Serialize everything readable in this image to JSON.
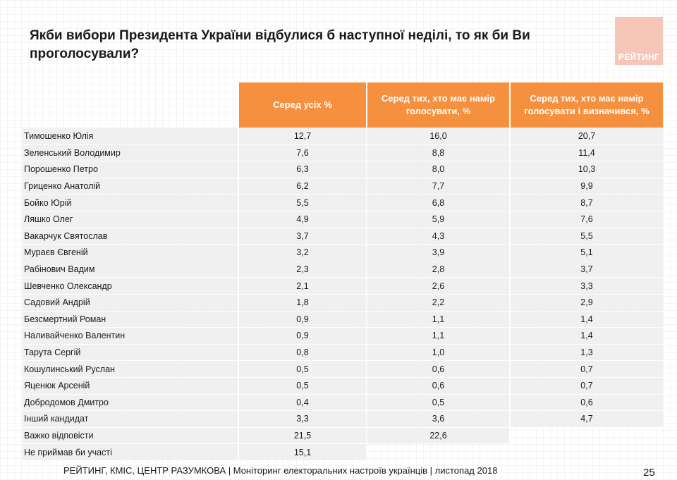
{
  "title": "Якби вибори Президента України відбулися б наступної неділі, то як би Ви проголосували?",
  "logo_text": "РЕЙТИНГ",
  "table": {
    "headers": [
      "Серед усіх %",
      "Серед тих, хто має намір голосувати, %",
      "Серед тих, хто має намір голосувати і визначився, %"
    ],
    "rows": [
      {
        "name": "Тимошенко Юлія",
        "v1": "12,7",
        "v2": "16,0",
        "v3": "20,7"
      },
      {
        "name": "Зеленський Володимир",
        "v1": "7,6",
        "v2": "8,8",
        "v3": "11,4"
      },
      {
        "name": "Порошенко Петро",
        "v1": "6,3",
        "v2": "8,0",
        "v3": "10,3"
      },
      {
        "name": "Гриценко Анатолій",
        "v1": "6,2",
        "v2": "7,7",
        "v3": "9,9"
      },
      {
        "name": "Бойко Юрій",
        "v1": "5,5",
        "v2": "6,8",
        "v3": "8,7"
      },
      {
        "name": "Ляшко Олег",
        "v1": "4,9",
        "v2": "5,9",
        "v3": "7,6"
      },
      {
        "name": "Вакарчук Святослав",
        "v1": "3,7",
        "v2": "4,3",
        "v3": "5,5"
      },
      {
        "name": "Мураєв Євгеній",
        "v1": "3,2",
        "v2": "3,9",
        "v3": "5,1"
      },
      {
        "name": "Рабінович Вадим",
        "v1": "2,3",
        "v2": "2,8",
        "v3": "3,7"
      },
      {
        "name": "Шевченко Олександр",
        "v1": "2,1",
        "v2": "2,6",
        "v3": "3,3"
      },
      {
        "name": "Садовий Андрій",
        "v1": "1,8",
        "v2": "2,2",
        "v3": "2,9"
      },
      {
        "name": "Безсмертний Роман",
        "v1": "0,9",
        "v2": "1,1",
        "v3": "1,4"
      },
      {
        "name": "Наливайченко Валентин",
        "v1": "0,9",
        "v2": "1,1",
        "v3": "1,4"
      },
      {
        "name": "Тарута Сергій",
        "v1": "0,8",
        "v2": "1,0",
        "v3": "1,3"
      },
      {
        "name": "Кошулинський Руслан",
        "v1": "0,5",
        "v2": "0,6",
        "v3": "0,7"
      },
      {
        "name": "Яценюк Арсеній",
        "v1": "0,5",
        "v2": "0,6",
        "v3": "0,7"
      },
      {
        "name": "Добродомов Дмитро",
        "v1": "0,4",
        "v2": "0,5",
        "v3": "0,6"
      },
      {
        "name": "Інший кандидат",
        "v1": "3,3",
        "v2": "3,6",
        "v3": "4,7"
      },
      {
        "name": "Важко відповісти",
        "v1": "21,5",
        "v2": "22,6",
        "v3": null
      },
      {
        "name": "Не приймав би участі",
        "v1": "15,1",
        "v2": null,
        "v3": null
      }
    ]
  },
  "footer": "РЕЙТИНГ, КМІС, ЦЕНТР РАЗУМКОВА |  Моніторинг електоральних настроїв українців | листопад 2018",
  "page_number": "25",
  "colors": {
    "accent": "#f5903e",
    "row_bg": "#f0f0f0",
    "logo_bg": "#f6c6b8"
  }
}
